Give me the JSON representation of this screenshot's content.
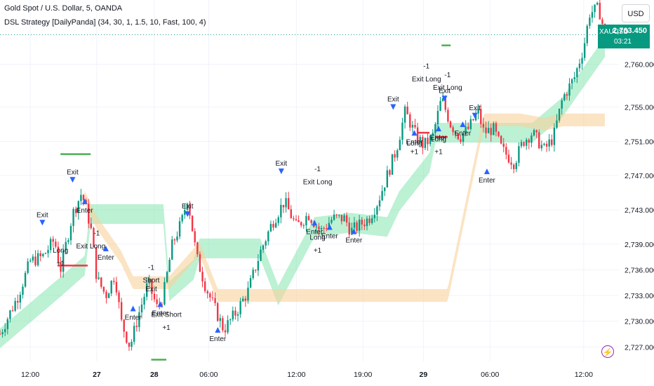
{
  "header": {
    "title": "Gold Spot / U.S. Dollar, 5, OANDA",
    "indicator": "DSL Strategy [DailyPanda] (34, 30, 1, 1.5, 10, Fast, 100, 4)"
  },
  "currency_button": "USD",
  "price_tag": {
    "symbol": "XAUUSD",
    "price": "2,763.450",
    "countdown": "03:21"
  },
  "icons": {
    "alert": "lightning-bolt-icon"
  },
  "colors": {
    "up_candle": "#089981",
    "down_candle": "#f23645",
    "upper_band": "#90e8b8",
    "lower_band": "#f9d29c",
    "long_signal": "#2962ff",
    "exit_signal": "#e040fb",
    "level_green": "#4caf50",
    "level_red": "#f23645"
  },
  "chart_data": {
    "type": "candlestick",
    "y_axis": {
      "ticks": [
        "2,727.000",
        "2,730.000",
        "2,733.000",
        "2,736.000",
        "2,739.000",
        "2,743.000",
        "2,747.000",
        "2,751.000",
        "2,755.000",
        "2,760.000"
      ],
      "tick_values": [
        2727,
        2730,
        2733,
        2736,
        2739,
        2743,
        2747,
        2751,
        2755,
        2760
      ],
      "range": [
        2725.3,
        2767.5
      ]
    },
    "x_axis": {
      "ticks": [
        "12:00",
        "27",
        "28",
        "06:00",
        "12:00",
        "19:00",
        "29",
        "06:00",
        "12:00"
      ],
      "bold": [
        false,
        true,
        true,
        false,
        false,
        false,
        true,
        false,
        false
      ]
    },
    "close_path": [
      [
        0.0,
        2728.5
      ],
      [
        0.03,
        2733.0
      ],
      [
        0.05,
        2737.0
      ],
      [
        0.07,
        2737.5
      ],
      [
        0.09,
        2739.5
      ],
      [
        0.1,
        2736.0
      ],
      [
        0.12,
        2742.5
      ],
      [
        0.135,
        2745.0
      ],
      [
        0.15,
        2741.0
      ],
      [
        0.16,
        2735.0
      ],
      [
        0.175,
        2733.0
      ],
      [
        0.19,
        2735.5
      ],
      [
        0.2,
        2730.0
      ],
      [
        0.215,
        2727.0
      ],
      [
        0.23,
        2731.0
      ],
      [
        0.245,
        2734.5
      ],
      [
        0.26,
        2731.5
      ],
      [
        0.27,
        2733.0
      ],
      [
        0.285,
        2739.0
      ],
      [
        0.3,
        2741.5
      ],
      [
        0.31,
        2744.5
      ],
      [
        0.325,
        2737.5
      ],
      [
        0.34,
        2734.0
      ],
      [
        0.355,
        2731.5
      ],
      [
        0.37,
        2729.0
      ],
      [
        0.39,
        2731.0
      ],
      [
        0.41,
        2733.5
      ],
      [
        0.43,
        2738.0
      ],
      [
        0.45,
        2741.5
      ],
      [
        0.47,
        2744.0
      ],
      [
        0.49,
        2741.0
      ],
      [
        0.51,
        2742.5
      ],
      [
        0.53,
        2740.5
      ],
      [
        0.55,
        2742.0
      ],
      [
        0.57,
        2742.0
      ],
      [
        0.58,
        2740.5
      ],
      [
        0.61,
        2742.0
      ],
      [
        0.625,
        2744.0
      ],
      [
        0.64,
        2747.0
      ],
      [
        0.655,
        2750.0
      ],
      [
        0.67,
        2754.5
      ],
      [
        0.685,
        2752.0
      ],
      [
        0.7,
        2750.5
      ],
      [
        0.715,
        2751.5
      ],
      [
        0.73,
        2756.0
      ],
      [
        0.745,
        2753.0
      ],
      [
        0.76,
        2751.5
      ],
      [
        0.775,
        2752.5
      ],
      [
        0.79,
        2754.5
      ],
      [
        0.8,
        2752.0
      ],
      [
        0.815,
        2752.5
      ],
      [
        0.83,
        2750.0
      ],
      [
        0.85,
        2748.5
      ],
      [
        0.865,
        2751.0
      ],
      [
        0.88,
        2752.0
      ],
      [
        0.9,
        2750.0
      ],
      [
        0.915,
        2751.5
      ],
      [
        0.93,
        2756.0
      ],
      [
        0.95,
        2758.5
      ],
      [
        0.965,
        2762.0
      ],
      [
        0.975,
        2766.0
      ],
      [
        0.99,
        2766.5
      ],
      [
        1.0,
        2763.5
      ]
    ],
    "series": [
      {
        "name": "upper band",
        "path": [
          [
            0.0,
            2728.0
          ],
          [
            0.1,
            2734.0
          ],
          [
            0.14,
            2736.5
          ],
          [
            0.15,
            2742.5
          ],
          [
            0.27,
            2742.5
          ],
          [
            0.28,
            2733.5
          ],
          [
            0.32,
            2736.0
          ],
          [
            0.33,
            2738.5
          ],
          [
            0.43,
            2738.5
          ],
          [
            0.46,
            2733.0
          ],
          [
            0.52,
            2741.0
          ],
          [
            0.58,
            2741.5
          ],
          [
            0.64,
            2741.0
          ],
          [
            0.66,
            2744.0
          ],
          [
            0.71,
            2748.5
          ],
          [
            0.72,
            2752.0
          ],
          [
            0.8,
            2752.0
          ],
          [
            0.84,
            2752.0
          ],
          [
            0.88,
            2752.0
          ],
          [
            0.93,
            2755.0
          ],
          [
            0.97,
            2759.0
          ],
          [
            1.0,
            2762.0
          ]
        ]
      },
      {
        "name": "lower band",
        "path": [
          [
            0.14,
            2744.5
          ],
          [
            0.16,
            2741.5
          ],
          [
            0.2,
            2737.5
          ],
          [
            0.22,
            2734.5
          ],
          [
            0.28,
            2734.5
          ],
          [
            0.33,
            2738.5
          ],
          [
            0.36,
            2733.0
          ],
          [
            0.74,
            2733.0
          ],
          [
            0.8,
            2753.5
          ],
          [
            0.86,
            2753.5
          ],
          [
            0.9,
            2753.0
          ],
          [
            0.93,
            2753.5
          ],
          [
            1.0,
            2753.5
          ]
        ]
      }
    ],
    "signals": [
      {
        "type": "exit",
        "label": "Exit",
        "x": 0.07,
        "y": 2741.5
      },
      {
        "type": "exit",
        "label": "Exit",
        "x": 0.12,
        "y": 2746.5
      },
      {
        "type": "enter",
        "label": "Enter",
        "x": 0.14,
        "y": 2743.5
      },
      {
        "type": "label",
        "label": "-1",
        "x": 0.16,
        "y": 2740.0
      },
      {
        "type": "label",
        "label": "Exit Long",
        "x": 0.15,
        "y": 2738.5
      },
      {
        "type": "label",
        "label": "Long",
        "x": 0.1,
        "y": 2738.0
      },
      {
        "type": "label",
        "label": "+1",
        "x": 0.1,
        "y": 2736.5
      },
      {
        "type": "enter",
        "label": "Enter",
        "x": 0.175,
        "y": 2738.0
      },
      {
        "type": "label",
        "label": "-1",
        "x": 0.25,
        "y": 2736.0
      },
      {
        "type": "label",
        "label": "Short",
        "x": 0.25,
        "y": 2734.5
      },
      {
        "type": "label",
        "label": "Exit",
        "x": 0.25,
        "y": 2733.5
      },
      {
        "type": "enter",
        "label": "Enter",
        "x": 0.22,
        "y": 2731.0
      },
      {
        "type": "enter",
        "label": "Enter",
        "x": 0.265,
        "y": 2731.5
      },
      {
        "type": "label",
        "label": "Exit Short",
        "x": 0.275,
        "y": 2730.5
      },
      {
        "type": "label",
        "label": "+1",
        "x": 0.275,
        "y": 2729.0
      },
      {
        "type": "exit",
        "label": "Exit",
        "x": 0.31,
        "y": 2742.5
      },
      {
        "type": "enter",
        "label": "Enter",
        "x": 0.36,
        "y": 2728.5
      },
      {
        "type": "exit",
        "label": "Exit",
        "x": 0.465,
        "y": 2747.5
      },
      {
        "type": "label",
        "label": "-1",
        "x": 0.525,
        "y": 2747.5
      },
      {
        "type": "label",
        "label": "Exit Long",
        "x": 0.525,
        "y": 2746.0
      },
      {
        "type": "enter",
        "label": "Enter",
        "x": 0.52,
        "y": 2741.0
      },
      {
        "type": "label",
        "label": "Long",
        "x": 0.525,
        "y": 2739.5
      },
      {
        "type": "label",
        "label": "+1",
        "x": 0.525,
        "y": 2738.0
      },
      {
        "type": "enter",
        "label": "Enter",
        "x": 0.545,
        "y": 2740.5
      },
      {
        "type": "enter",
        "label": "Enter",
        "x": 0.585,
        "y": 2740.0
      },
      {
        "type": "exit",
        "label": "Exit",
        "x": 0.65,
        "y": 2755.0
      },
      {
        "type": "label",
        "label": "-1",
        "x": 0.705,
        "y": 2759.5
      },
      {
        "type": "label",
        "label": "Exit Long",
        "x": 0.705,
        "y": 2758.0
      },
      {
        "type": "label",
        "label": "-1",
        "x": 0.74,
        "y": 2758.5
      },
      {
        "type": "label",
        "label": "Exit Long",
        "x": 0.74,
        "y": 2757.0
      },
      {
        "type": "exit",
        "label": "Exit",
        "x": 0.735,
        "y": 2756.0
      },
      {
        "type": "enter",
        "label": "Enter",
        "x": 0.685,
        "y": 2751.5
      },
      {
        "type": "label",
        "label": "Long",
        "x": 0.685,
        "y": 2750.5
      },
      {
        "type": "label",
        "label": "+1",
        "x": 0.685,
        "y": 2749.5
      },
      {
        "type": "enter",
        "label": "Enter",
        "x": 0.725,
        "y": 2752.0
      },
      {
        "type": "label",
        "label": "Long",
        "x": 0.725,
        "y": 2751.0
      },
      {
        "type": "label",
        "label": "+1",
        "x": 0.725,
        "y": 2749.5
      },
      {
        "type": "enter",
        "label": "Enter",
        "x": 0.765,
        "y": 2752.5
      },
      {
        "type": "exit",
        "label": "Exit",
        "x": 0.785,
        "y": 2754.0
      },
      {
        "type": "enter",
        "label": "Enter",
        "x": 0.805,
        "y": 2747.0
      }
    ],
    "levels": [
      {
        "color": "green",
        "x1": 0.1,
        "x2": 0.15,
        "y": 2749.5
      },
      {
        "color": "green",
        "x1": 0.25,
        "x2": 0.275,
        "y": 2725.5
      },
      {
        "color": "green",
        "x1": 0.73,
        "x2": 0.745,
        "y": 2762.2
      },
      {
        "color": "red",
        "x1": 0.095,
        "x2": 0.145,
        "y": 2736.5
      },
      {
        "color": "red",
        "x1": 0.69,
        "x2": 0.71,
        "y": 2752.0
      },
      {
        "color": "red",
        "x1": 0.72,
        "x2": 0.74,
        "y": 2751.5
      }
    ]
  }
}
